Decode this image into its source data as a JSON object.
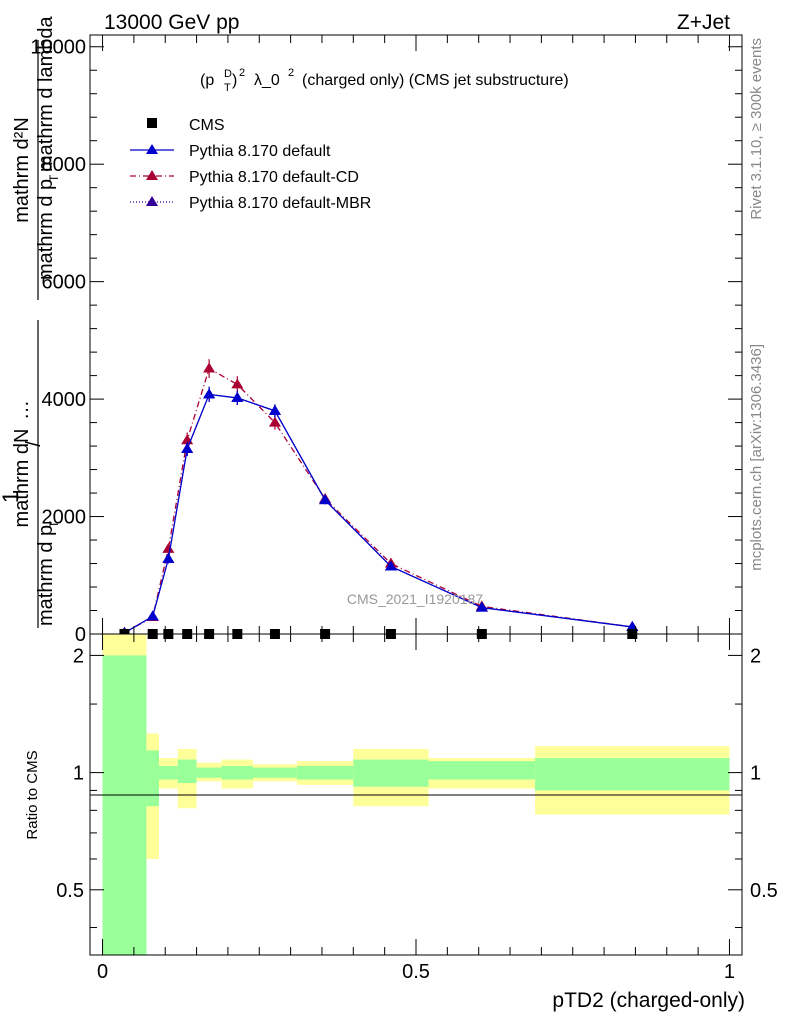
{
  "header": {
    "left": "13000 GeV pp",
    "right": "Z+Jet"
  },
  "title": {
    "main": "(p",
    "sup": "D",
    "sub": "T",
    "sq": "2",
    "rest": "λ_0",
    "sq2": "2",
    "tail": "(charged only) (CMS jet substructure)"
  },
  "ylabel_top": {
    "one": "1",
    "frac_top": "mathrm d²N",
    "frac_bottom_a": "mathrm d p",
    "frac_bottom_sub": "T",
    "frac_bottom_b": " mathrm d lambda"
  },
  "ylabel_bottom": {
    "frac_top": "mathrm dN",
    "frac_bottom_a": "mathrm d p",
    "frac_bottom_sub": "T"
  },
  "ratio_label": "Ratio to CMS",
  "side_right_top": "Rivet 3.1.10, ≥ 300k events",
  "side_right_bottom": "mcplots.cern.ch [arXiv:1306.3436]",
  "watermark": "CMS_2021_I1920187",
  "colors": {
    "default": "#0000cc",
    "cd": "#aa0033",
    "mbr": "#330099",
    "green": "#99ff99",
    "yellow": "#ffff99"
  },
  "chart_data": [
    {
      "type": "line",
      "title": "(pTD)2 λ_0 2 (charged only) (CMS jet substructure)",
      "xlabel": "pTD2 (charged-only)",
      "ylabel": "1/N dN/dpT ... d²N/(dpT dλ)",
      "xlim": [
        -0.02,
        1.02
      ],
      "ylim": [
        0,
        10200
      ],
      "yticks": [
        0,
        2000,
        4000,
        6000,
        8000,
        10000
      ],
      "ytick_labels": [
        "0",
        "2000",
        "4000",
        "6000",
        "8000",
        "10000"
      ],
      "legend": [
        "CMS",
        "Pythia 8.170 default",
        "Pythia 8.170 default-CD",
        "Pythia 8.170 default-MBR"
      ],
      "cms": {
        "x": [
          0.035,
          0.08,
          0.105,
          0.135,
          0.17,
          0.215,
          0.275,
          0.355,
          0.46,
          0.605,
          0.845
        ],
        "y": [
          0,
          0,
          0,
          0,
          0,
          0,
          0,
          0,
          0,
          0,
          0
        ]
      },
      "series": [
        {
          "name": "Pythia 8.170 default",
          "x": [
            0.035,
            0.08,
            0.105,
            0.135,
            0.17,
            0.215,
            0.275,
            0.355,
            0.46,
            0.605,
            0.845
          ],
          "y": [
            20,
            300,
            1280,
            3150,
            4080,
            4020,
            3800,
            2280,
            1150,
            450,
            120
          ],
          "err": [
            10,
            40,
            80,
            120,
            130,
            120,
            110,
            70,
            40,
            20,
            10
          ]
        },
        {
          "name": "Pythia 8.170 default-CD",
          "x": [
            0.035,
            0.08,
            0.105,
            0.135,
            0.17,
            0.215,
            0.275,
            0.355,
            0.46,
            0.605,
            0.845
          ],
          "y": [
            20,
            290,
            1450,
            3300,
            4520,
            4250,
            3600,
            2300,
            1200,
            470,
            120
          ],
          "err": [
            10,
            40,
            80,
            130,
            160,
            140,
            120,
            70,
            40,
            20,
            10
          ]
        },
        {
          "name": "Pythia 8.170 default-MBR",
          "x": [
            0.035,
            0.08,
            0.105,
            0.135,
            0.17,
            0.215,
            0.275,
            0.355,
            0.46,
            0.605,
            0.845
          ],
          "y": [
            20,
            300,
            1280,
            3150,
            4080,
            4020,
            3800,
            2280,
            1150,
            450,
            120
          ],
          "err": [
            10,
            40,
            80,
            120,
            130,
            120,
            110,
            70,
            40,
            20,
            10
          ]
        }
      ]
    },
    {
      "type": "area",
      "title": "Ratio to CMS",
      "xlabel": "pTD2 (charged-only)",
      "ylabel": "Ratio to CMS",
      "xlim": [
        -0.02,
        1.02
      ],
      "ylim": [
        0.34,
        2.27
      ],
      "yticks": [
        0.5,
        1,
        2
      ],
      "ytick_labels": [
        "0.5",
        "1",
        "2"
      ],
      "xticks": [
        0,
        0.5,
        1
      ],
      "xtick_labels": [
        "0",
        "0.5",
        "1"
      ],
      "bands": [
        {
          "x0": 0.0,
          "x1": 0.07,
          "g_lo": 0.34,
          "g_hi": 2.0,
          "y_lo": 0.34,
          "y_hi": 2.27
        },
        {
          "x0": 0.07,
          "x1": 0.09,
          "g_lo": 0.82,
          "g_hi": 1.14,
          "y_lo": 0.6,
          "y_hi": 1.26
        },
        {
          "x0": 0.09,
          "x1": 0.12,
          "g_lo": 0.96,
          "g_hi": 1.04,
          "y_lo": 0.91,
          "y_hi": 1.09
        },
        {
          "x0": 0.12,
          "x1": 0.15,
          "g_lo": 0.94,
          "g_hi": 1.08,
          "y_lo": 0.81,
          "y_hi": 1.15
        },
        {
          "x0": 0.15,
          "x1": 0.19,
          "g_lo": 0.97,
          "g_hi": 1.03,
          "y_lo": 0.95,
          "y_hi": 1.06
        },
        {
          "x0": 0.19,
          "x1": 0.24,
          "g_lo": 0.96,
          "g_hi": 1.04,
          "y_lo": 0.91,
          "y_hi": 1.08
        },
        {
          "x0": 0.24,
          "x1": 0.31,
          "g_lo": 0.97,
          "g_hi": 1.03,
          "y_lo": 0.95,
          "y_hi": 1.05
        },
        {
          "x0": 0.31,
          "x1": 0.4,
          "g_lo": 0.96,
          "g_hi": 1.04,
          "y_lo": 0.93,
          "y_hi": 1.07
        },
        {
          "x0": 0.4,
          "x1": 0.52,
          "g_lo": 0.92,
          "g_hi": 1.08,
          "y_lo": 0.82,
          "y_hi": 1.15
        },
        {
          "x0": 0.52,
          "x1": 0.69,
          "g_lo": 0.96,
          "g_hi": 1.07,
          "y_lo": 0.91,
          "y_hi": 1.09
        },
        {
          "x0": 0.69,
          "x1": 1.0,
          "g_lo": 0.9,
          "g_hi": 1.09,
          "y_lo": 0.78,
          "y_hi": 1.17
        }
      ]
    }
  ]
}
